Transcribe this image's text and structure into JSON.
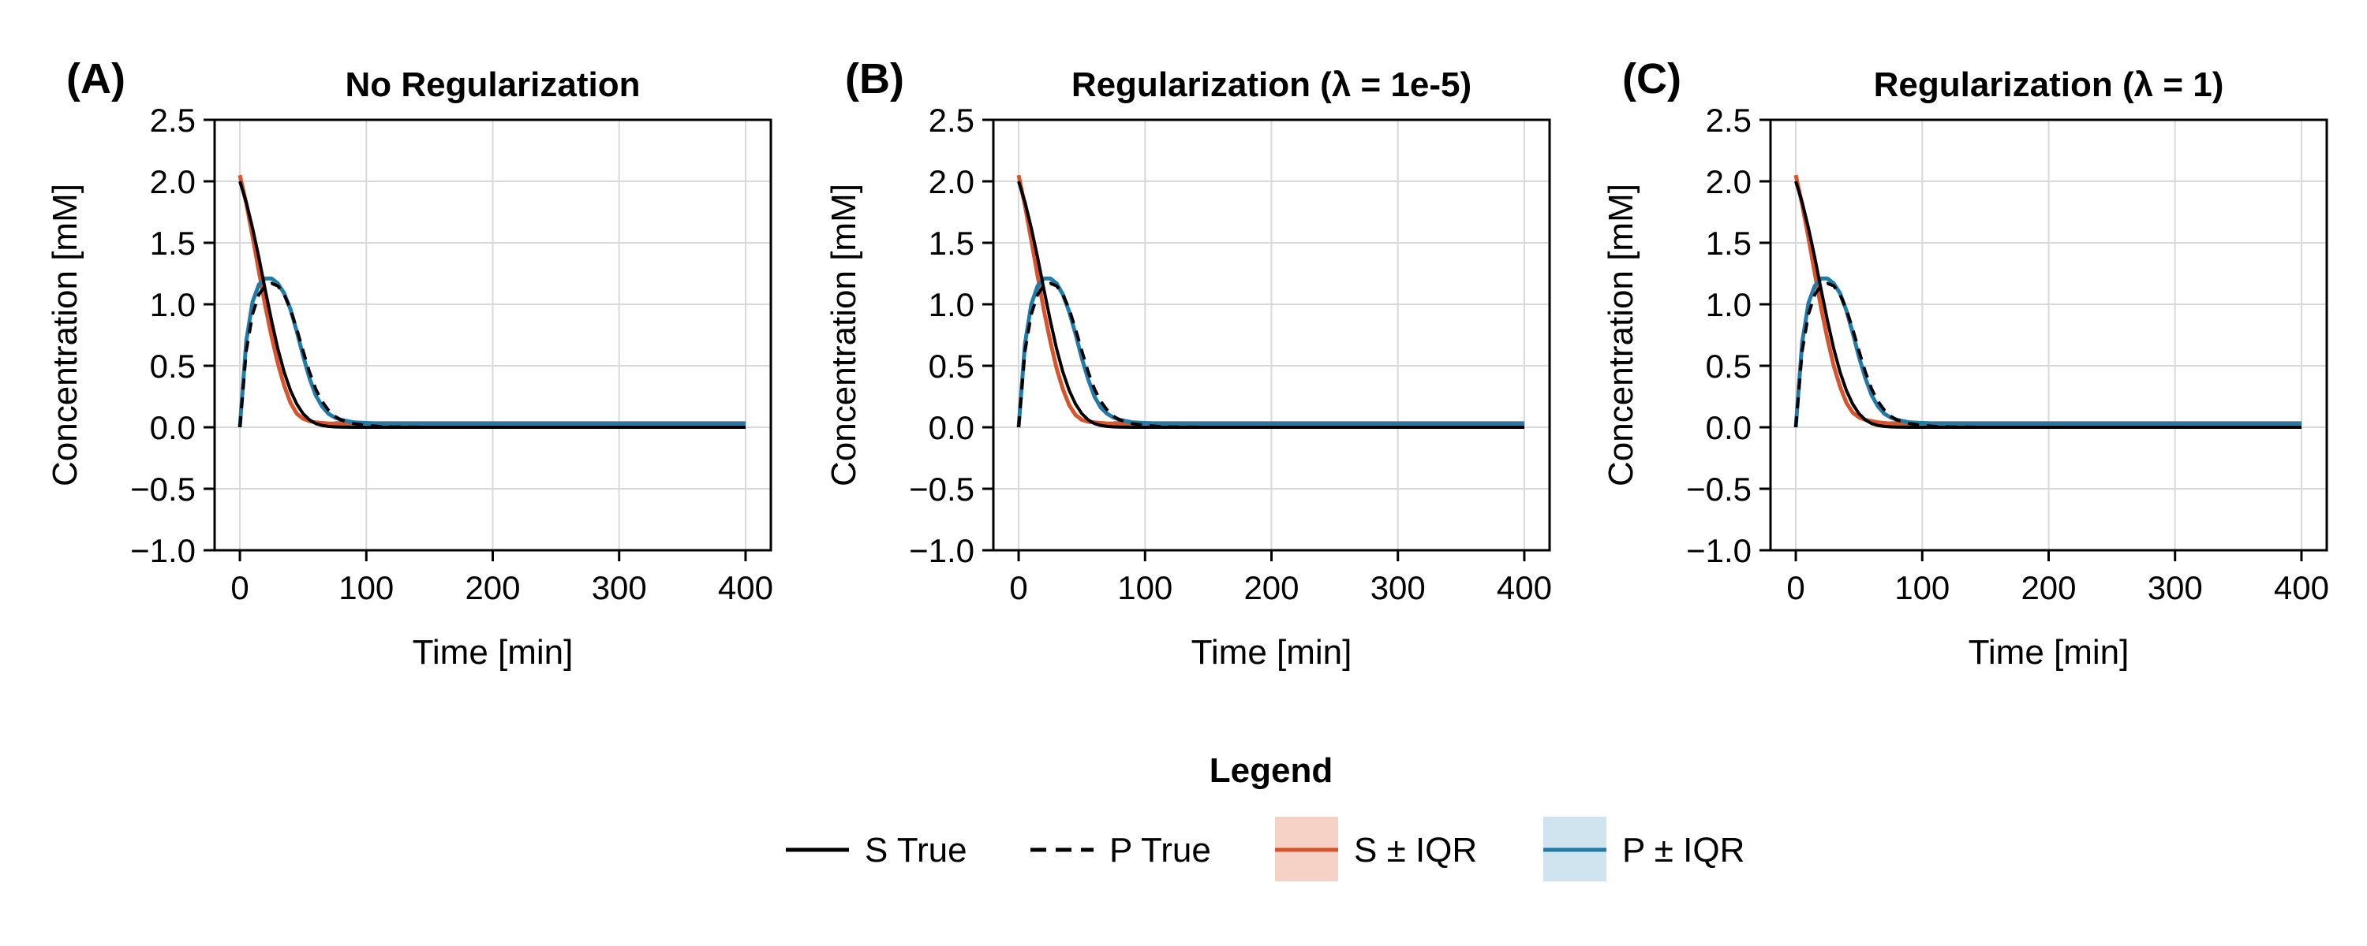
{
  "colors": {
    "s_true": "#000000",
    "p_true": "#000000",
    "s_fit": "#d9542a",
    "s_band": "#f6d2c6",
    "p_fit": "#1f7ba8",
    "p_band": "#cfe4ee",
    "baseline": "#6b6b6b",
    "grid": "#d9d9d9"
  },
  "legend": {
    "title": "Legend",
    "items": [
      {
        "label": "S True",
        "style": "solid-line",
        "color": "#000000"
      },
      {
        "label": "P True",
        "style": "dashed-line",
        "color": "#000000"
      },
      {
        "label": "S ± IQR",
        "style": "line-with-band",
        "color": "#d9542a",
        "band": "#f6d2c6"
      },
      {
        "label": "P ± IQR",
        "style": "line-with-band",
        "color": "#1f7ba8",
        "band": "#cfe4ee"
      }
    ]
  },
  "chart_data": [
    {
      "type": "line",
      "panel": "(A)",
      "title": "No Regularization",
      "xlabel": "Time [min]",
      "ylabel": "Concentration [mM]",
      "xlim": [
        -20,
        420
      ],
      "ylim": [
        -1.0,
        2.5
      ],
      "xticks": [
        "0",
        "100",
        "200",
        "300",
        "400"
      ],
      "yticks": [
        "−1.0",
        "−0.5",
        "0.0",
        "0.5",
        "1.0",
        "1.5",
        "2.0",
        "2.5"
      ],
      "grid": true,
      "x": [
        0,
        5,
        10,
        15,
        20,
        25,
        30,
        35,
        40,
        45,
        50,
        55,
        60,
        65,
        70,
        75,
        80,
        90,
        100,
        110,
        120,
        150,
        200,
        250,
        300,
        350,
        400
      ],
      "series": [
        {
          "name": "S True",
          "values": [
            2.0,
            1.83,
            1.62,
            1.38,
            1.12,
            0.87,
            0.64,
            0.45,
            0.3,
            0.19,
            0.11,
            0.06,
            0.03,
            0.015,
            0.007,
            0.003,
            0.001,
            0.0,
            0.0,
            0.0,
            0.0,
            0.0,
            0.0,
            0.0,
            0.0,
            0.0,
            0.0
          ]
        },
        {
          "name": "P True",
          "values": [
            0.0,
            0.62,
            0.92,
            1.08,
            1.15,
            1.17,
            1.15,
            1.08,
            0.96,
            0.8,
            0.62,
            0.45,
            0.31,
            0.21,
            0.14,
            0.09,
            0.06,
            0.03,
            0.015,
            0.007,
            0.003,
            0.0,
            0.0,
            0.0,
            0.0,
            0.0,
            0.0
          ]
        },
        {
          "name": "S ± IQR",
          "values": [
            2.05,
            1.82,
            1.55,
            1.27,
            0.99,
            0.74,
            0.52,
            0.34,
            0.2,
            0.11,
            0.07,
            0.05,
            0.04,
            0.035,
            0.03,
            0.03,
            0.03,
            0.03,
            0.03,
            0.03,
            0.03,
            0.03,
            0.03,
            0.03,
            0.03,
            0.03,
            0.03
          ]
        },
        {
          "name": "P ± IQR",
          "values": [
            0.0,
            0.7,
            1.02,
            1.16,
            1.21,
            1.21,
            1.17,
            1.09,
            0.96,
            0.78,
            0.58,
            0.4,
            0.26,
            0.17,
            0.11,
            0.08,
            0.06,
            0.04,
            0.035,
            0.03,
            0.03,
            0.03,
            0.03,
            0.03,
            0.03,
            0.03,
            0.03
          ]
        }
      ]
    },
    {
      "type": "line",
      "panel": "(B)",
      "title": "Regularization (λ = 1e-5)",
      "xlabel": "Time [min]",
      "ylabel": "Concentration [mM]",
      "xlim": [
        -20,
        420
      ],
      "ylim": [
        -1.0,
        2.5
      ],
      "xticks": [
        "0",
        "100",
        "200",
        "300",
        "400"
      ],
      "yticks": [
        "−1.0",
        "−0.5",
        "0.0",
        "0.5",
        "1.0",
        "1.5",
        "2.0",
        "2.5"
      ],
      "grid": true,
      "x": [
        0,
        5,
        10,
        15,
        20,
        25,
        30,
        35,
        40,
        45,
        50,
        55,
        60,
        65,
        70,
        75,
        80,
        90,
        100,
        110,
        120,
        150,
        200,
        250,
        300,
        350,
        400
      ],
      "series": [
        {
          "name": "S True",
          "values": [
            2.0,
            1.83,
            1.62,
            1.38,
            1.12,
            0.87,
            0.64,
            0.45,
            0.3,
            0.19,
            0.11,
            0.06,
            0.03,
            0.015,
            0.007,
            0.003,
            0.001,
            0.0,
            0.0,
            0.0,
            0.0,
            0.0,
            0.0,
            0.0,
            0.0,
            0.0,
            0.0
          ]
        },
        {
          "name": "P True",
          "values": [
            0.0,
            0.62,
            0.92,
            1.08,
            1.15,
            1.17,
            1.15,
            1.08,
            0.96,
            0.8,
            0.62,
            0.45,
            0.31,
            0.21,
            0.14,
            0.09,
            0.06,
            0.03,
            0.015,
            0.007,
            0.003,
            0.0,
            0.0,
            0.0,
            0.0,
            0.0,
            0.0
          ]
        },
        {
          "name": "S ± IQR",
          "values": [
            2.05,
            1.8,
            1.52,
            1.23,
            0.95,
            0.7,
            0.48,
            0.31,
            0.18,
            0.1,
            0.06,
            0.045,
            0.04,
            0.035,
            0.03,
            0.03,
            0.03,
            0.03,
            0.03,
            0.03,
            0.03,
            0.03,
            0.03,
            0.03,
            0.03,
            0.03,
            0.03
          ]
        },
        {
          "name": "P ± IQR",
          "values": [
            0.0,
            0.68,
            1.0,
            1.15,
            1.21,
            1.21,
            1.17,
            1.08,
            0.94,
            0.76,
            0.56,
            0.39,
            0.25,
            0.16,
            0.11,
            0.08,
            0.06,
            0.04,
            0.035,
            0.03,
            0.03,
            0.03,
            0.03,
            0.03,
            0.03,
            0.03,
            0.03
          ]
        }
      ]
    },
    {
      "type": "line",
      "panel": "(C)",
      "title": "Regularization (λ = 1)",
      "xlabel": "Time [min]",
      "ylabel": "Concentration [mM]",
      "xlim": [
        -20,
        420
      ],
      "ylim": [
        -1.0,
        2.5
      ],
      "xticks": [
        "0",
        "100",
        "200",
        "300",
        "400"
      ],
      "yticks": [
        "−1.0",
        "−0.5",
        "0.0",
        "0.5",
        "1.0",
        "1.5",
        "2.0",
        "2.5"
      ],
      "grid": true,
      "x": [
        0,
        5,
        10,
        15,
        20,
        25,
        30,
        35,
        40,
        45,
        50,
        55,
        60,
        65,
        70,
        75,
        80,
        90,
        100,
        110,
        120,
        150,
        200,
        250,
        300,
        350,
        400
      ],
      "series": [
        {
          "name": "S True",
          "values": [
            2.0,
            1.83,
            1.62,
            1.38,
            1.12,
            0.87,
            0.64,
            0.45,
            0.3,
            0.19,
            0.11,
            0.06,
            0.03,
            0.015,
            0.007,
            0.003,
            0.001,
            0.0,
            0.0,
            0.0,
            0.0,
            0.0,
            0.0,
            0.0,
            0.0,
            0.0,
            0.0
          ]
        },
        {
          "name": "P True",
          "values": [
            0.0,
            0.62,
            0.92,
            1.08,
            1.15,
            1.17,
            1.15,
            1.08,
            0.96,
            0.8,
            0.62,
            0.45,
            0.31,
            0.21,
            0.14,
            0.09,
            0.06,
            0.03,
            0.015,
            0.007,
            0.003,
            0.0,
            0.0,
            0.0,
            0.0,
            0.0,
            0.0
          ]
        },
        {
          "name": "S ± IQR",
          "values": [
            2.05,
            1.81,
            1.54,
            1.25,
            0.97,
            0.72,
            0.5,
            0.33,
            0.2,
            0.12,
            0.08,
            0.06,
            0.05,
            0.04,
            0.035,
            0.03,
            0.03,
            0.03,
            0.03,
            0.03,
            0.03,
            0.03,
            0.03,
            0.03,
            0.03,
            0.03,
            0.03
          ]
        },
        {
          "name": "P ± IQR",
          "values": [
            0.0,
            0.69,
            1.01,
            1.15,
            1.21,
            1.21,
            1.17,
            1.09,
            0.95,
            0.77,
            0.57,
            0.4,
            0.26,
            0.17,
            0.11,
            0.08,
            0.06,
            0.04,
            0.035,
            0.03,
            0.03,
            0.03,
            0.03,
            0.03,
            0.03,
            0.03,
            0.03
          ]
        }
      ]
    }
  ]
}
